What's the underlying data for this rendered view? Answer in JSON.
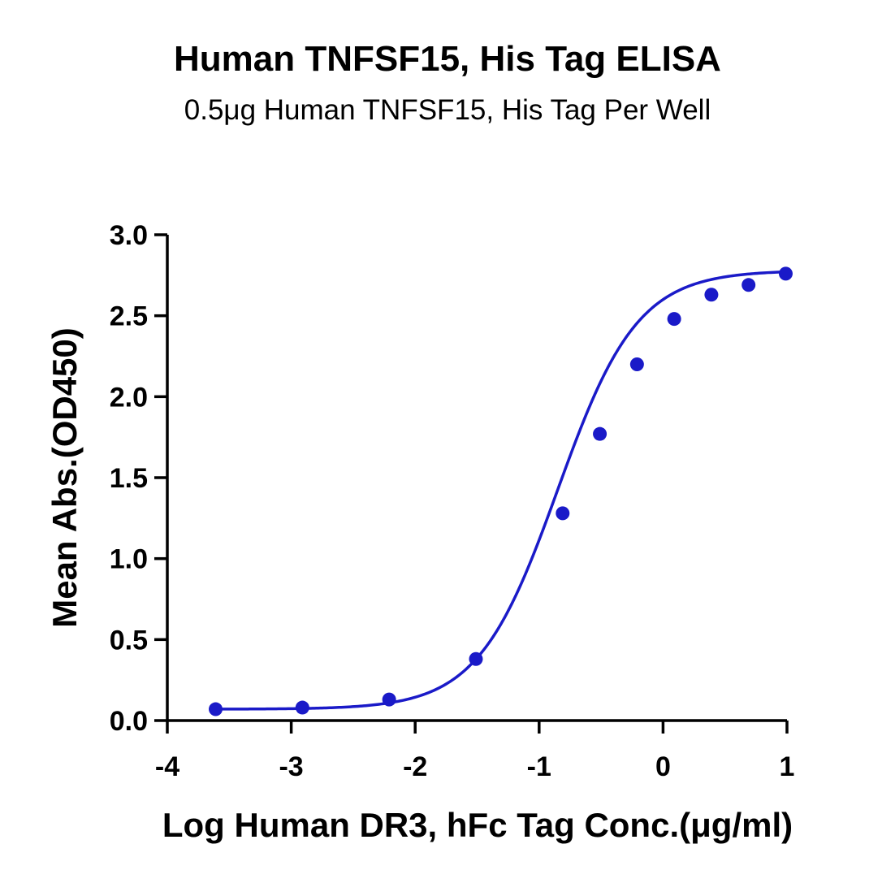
{
  "chart_data": {
    "type": "scatter",
    "title": "Human TNFSF15, His Tag ELISA",
    "subtitle": "0.5μg Human TNFSF15, His Tag Per Well",
    "xlabel": "Log Human DR3, hFc Tag Conc.(μg/ml)",
    "ylabel": "Mean Abs.(OD450)",
    "xlim": [
      -4,
      1
    ],
    "ylim": [
      0,
      3.0
    ],
    "x_ticks": [
      "-4",
      "-3",
      "-2",
      "-1",
      "0",
      "1"
    ],
    "y_ticks": [
      "0.0",
      "0.5",
      "1.0",
      "1.5",
      "2.0",
      "2.5",
      "3.0"
    ],
    "grid": false,
    "legend": "none",
    "color": "#1a1ac8",
    "series": [
      {
        "x": [
          -3.61,
          -2.91,
          -2.21,
          -1.51,
          -0.81,
          -0.51,
          -0.21,
          0.09,
          0.39,
          0.69,
          0.99
        ],
        "y": [
          0.07,
          0.08,
          0.13,
          0.38,
          1.28,
          1.77,
          2.2,
          2.48,
          2.63,
          2.69,
          2.76
        ],
        "fit": "four-parameter logistic"
      }
    ]
  }
}
